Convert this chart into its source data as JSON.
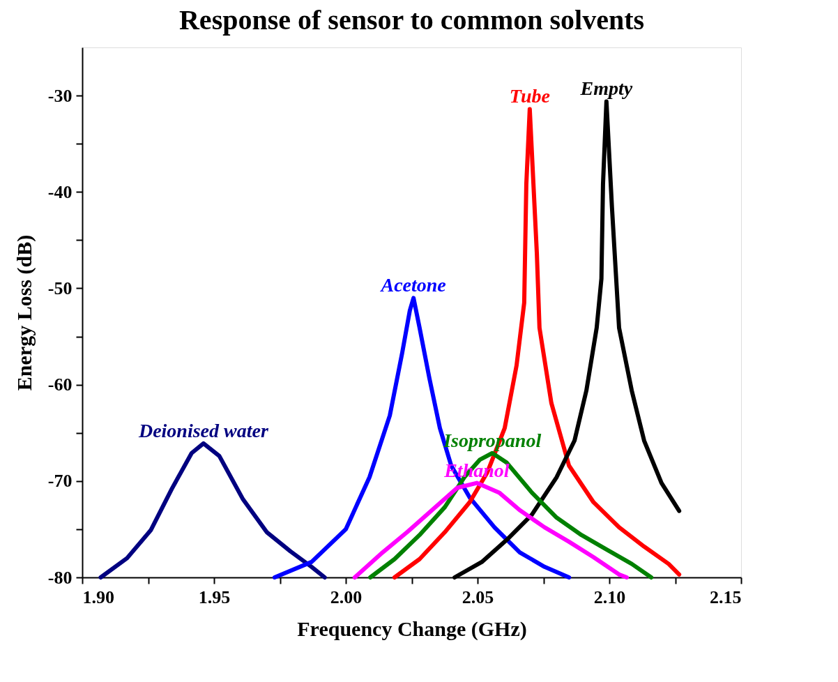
{
  "chart_data": {
    "type": "line",
    "title": "Response of sensor to common solvents",
    "xlabel": "Frequency Change (GHz)",
    "ylabel": "Energy Loss (dB)",
    "xlim": [
      1.9,
      2.15
    ],
    "ylim": [
      -80,
      -25
    ],
    "xticks": [
      {
        "value": 1.9,
        "label": "1.90"
      },
      {
        "value": 1.925,
        "label": null
      },
      {
        "value": 1.95,
        "label": "1.95"
      },
      {
        "value": 1.975,
        "label": null
      },
      {
        "value": 2.0,
        "label": "2.00"
      },
      {
        "value": 2.025,
        "label": null
      },
      {
        "value": 2.05,
        "label": "2.05"
      },
      {
        "value": 2.075,
        "label": null
      },
      {
        "value": 2.1,
        "label": "2.10"
      },
      {
        "value": 2.125,
        "label": null
      },
      {
        "value": 2.15,
        "label": "2.15"
      }
    ],
    "yticks": [
      -80,
      {
        "value": -75,
        "label": null
      },
      -70,
      {
        "value": -65,
        "label": null
      },
      -60,
      {
        "value": -55,
        "label": null
      },
      -50,
      {
        "value": -45,
        "label": null
      },
      -40,
      {
        "value": -35,
        "label": null
      },
      -30
    ],
    "grid": false,
    "legend": false,
    "marker": "none",
    "line_style": "solid",
    "series": [
      {
        "name": "Deionised water",
        "color": "#000080",
        "x": [
          1.907,
          1.917,
          1.926,
          1.934,
          1.9415,
          1.946,
          1.952,
          1.961,
          1.97,
          1.979,
          1.987,
          1.992
        ],
        "values": [
          -80,
          -78.0,
          -75.1,
          -70.8,
          -67.1,
          -66.1,
          -67.4,
          -71.9,
          -75.3,
          -77.3,
          -78.9,
          -80
        ]
      },
      {
        "name": "Acetone",
        "color": "#0000ff",
        "x": [
          1.973,
          1.987,
          2.0,
          2.009,
          2.0167,
          2.0214,
          2.0243,
          2.0257,
          2.028,
          2.0317,
          2.0357,
          2.04,
          2.047,
          2.0564,
          2.066,
          2.0754,
          2.0847
        ],
        "values": [
          -80,
          -78.4,
          -75.0,
          -69.6,
          -63.2,
          -56.7,
          -52.3,
          -51.0,
          -54.1,
          -59.3,
          -64.5,
          -68.4,
          -71.7,
          -74.8,
          -77.4,
          -78.9,
          -80
        ]
      },
      {
        "name": "Tube",
        "color": "#ff0000",
        "x": [
          2.0185,
          2.028,
          2.0376,
          2.047,
          2.0537,
          2.0603,
          2.0648,
          2.0677,
          2.0685,
          2.0698,
          2.0725,
          2.0735,
          2.078,
          2.0847,
          2.094,
          2.1037,
          2.1132,
          2.1225,
          2.1265
        ],
        "values": [
          -80,
          -78.1,
          -75.3,
          -72.2,
          -69.1,
          -64.5,
          -58.0,
          -51.5,
          -39.2,
          -31.4,
          -46.4,
          -54.1,
          -61.9,
          -68.4,
          -72.2,
          -74.8,
          -76.8,
          -78.6,
          -79.7
        ]
      },
      {
        "name": "Empty",
        "color": "#000000",
        "x": [
          2.0413,
          2.0516,
          2.0611,
          2.0706,
          2.08,
          2.0868,
          2.0913,
          2.0952,
          2.097,
          2.0976,
          2.0989,
          2.101,
          2.1037,
          2.1085,
          2.1132,
          2.1198,
          2.1265
        ],
        "values": [
          -80,
          -78.4,
          -76.1,
          -73.5,
          -69.6,
          -65.8,
          -60.6,
          -54.1,
          -49.0,
          -39.2,
          -30.6,
          -41.6,
          -54.1,
          -60.6,
          -65.8,
          -70.2,
          -73.1
        ]
      },
      {
        "name": "Isopropanol",
        "color": "#008000",
        "x": [
          2.0093,
          2.0185,
          2.028,
          2.0376,
          2.045,
          2.0508,
          2.0556,
          2.0611,
          2.0706,
          2.08,
          2.0894,
          2.0989,
          2.1085,
          2.1159
        ],
        "values": [
          -80,
          -78.1,
          -75.6,
          -72.7,
          -69.6,
          -67.8,
          -67.1,
          -68.1,
          -71.2,
          -73.8,
          -75.6,
          -77.1,
          -78.6,
          -80
        ]
      },
      {
        "name": "Ethanol",
        "color": "#ff00ff",
        "x": [
          2.0034,
          2.014,
          2.0233,
          2.0328,
          2.0423,
          2.0497,
          2.0582,
          2.0659,
          2.0754,
          2.0847,
          2.094,
          2.1037,
          2.1066
        ],
        "values": [
          -80,
          -77.4,
          -75.3,
          -73.0,
          -70.7,
          -70.2,
          -71.2,
          -73.0,
          -74.8,
          -76.3,
          -77.9,
          -79.7,
          -80
        ]
      }
    ]
  }
}
